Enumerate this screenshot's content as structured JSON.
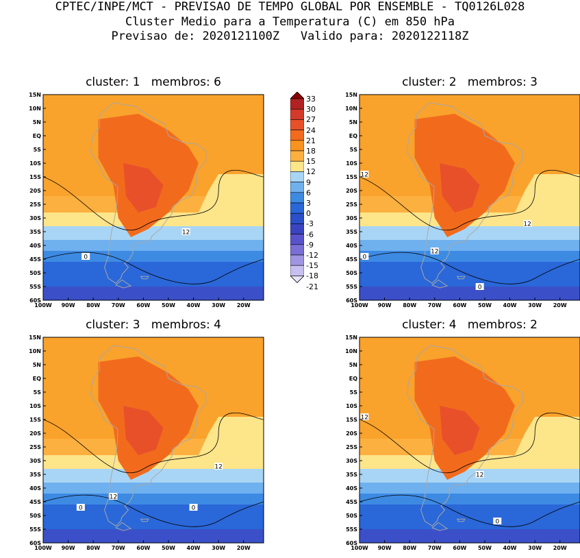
{
  "header": {
    "line1": "CPTEC/INPE/MCT - PREVISAO DE TEMPO GLOBAL POR ENSEMBLE - TQ0126L028",
    "line2": "Cluster Medio para a Temperatura (C) em 850 hPa",
    "line3": "Previsao de: 2020121100Z   Valido para: 2020122118Z"
  },
  "lat_labels": [
    "15N",
    "10N",
    "5N",
    "EQ",
    "5S",
    "10S",
    "15S",
    "20S",
    "25S",
    "30S",
    "35S",
    "40S",
    "45S",
    "50S",
    "55S",
    "60S"
  ],
  "lon_labels": [
    "100W",
    "90W",
    "80W",
    "70W",
    "60W",
    "50W",
    "40W",
    "30W",
    "20W"
  ],
  "panels": [
    {
      "title": "cluster: 1   membros: 6",
      "contour_labels": [
        "12",
        "0"
      ]
    },
    {
      "title": "cluster: 2   membros: 3",
      "contour_labels": [
        "12",
        "12",
        "12",
        "0",
        "0"
      ]
    },
    {
      "title": "cluster: 3   membros: 4",
      "contour_labels": [
        "12",
        "12",
        "0",
        "0"
      ]
    },
    {
      "title": "cluster: 4   membros: 2",
      "contour_labels": [
        "12",
        "12",
        "0"
      ]
    }
  ],
  "colorbar": {
    "labels": [
      "33",
      "30",
      "27",
      "24",
      "21",
      "18",
      "15",
      "12",
      "9",
      "6",
      "3",
      "0",
      "-3",
      "-6",
      "-9",
      "-12",
      "-15",
      "-18",
      "-21"
    ],
    "colors": [
      "#8b0000",
      "#b22222",
      "#d43a2a",
      "#e8502a",
      "#f26b1d",
      "#f7931e",
      "#fcb040",
      "#fde58a",
      "#a8d5f5",
      "#6fb1ef",
      "#3d8ae3",
      "#2a67d8",
      "#2a4fc8",
      "#3b44c0",
      "#5a52cc",
      "#7a6fd6",
      "#a095e2",
      "#c7bff0",
      "#e8e2fa"
    ]
  }
}
